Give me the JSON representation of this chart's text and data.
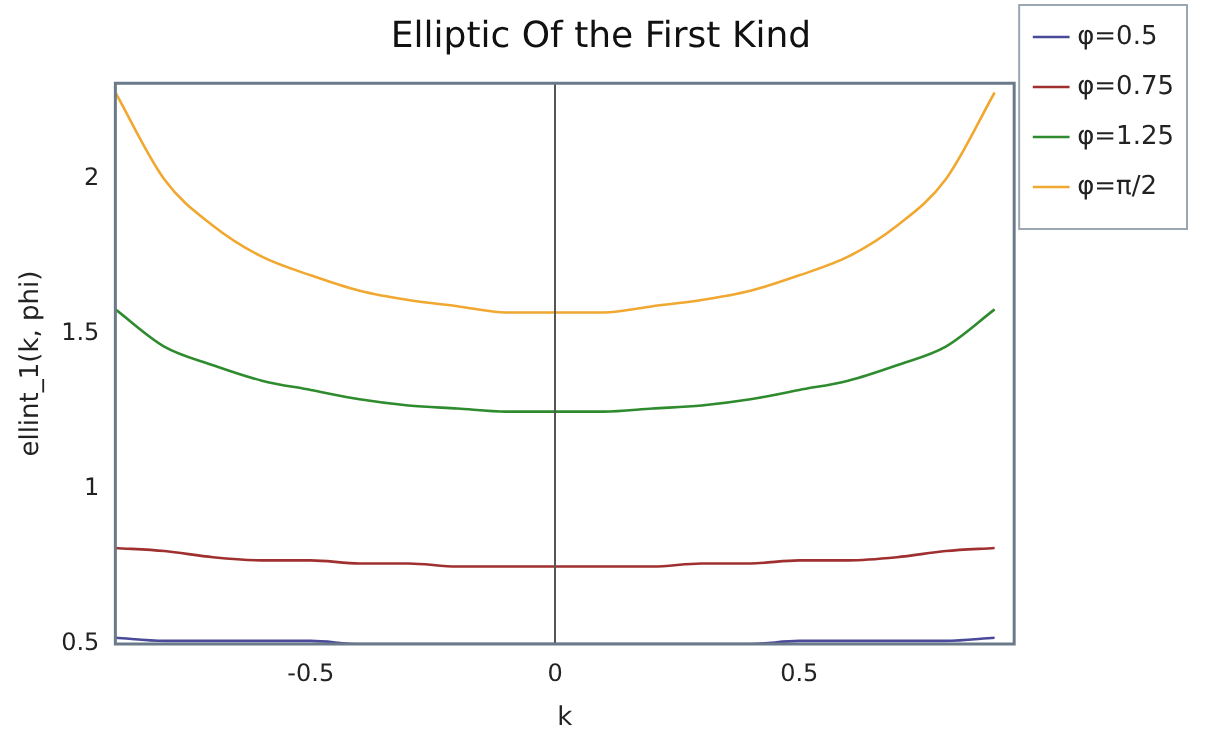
{
  "chart_data": {
    "type": "line",
    "title": "Elliptic Of the First Kind",
    "xlabel": "k",
    "ylabel": "ellint_1(k, phi)",
    "x": [
      -0.9,
      -0.8,
      -0.7,
      -0.6,
      -0.5,
      -0.4,
      -0.3,
      -0.2,
      -0.1,
      0,
      0.1,
      0.2,
      0.3,
      0.4,
      0.5,
      0.6,
      0.7,
      0.8,
      0.9
    ],
    "series": [
      {
        "name": "φ=0.5",
        "color": "#4a4a9a",
        "values": [
          0.52,
          0.51,
          0.51,
          0.51,
          0.51,
          0.5,
          0.5,
          0.5,
          0.5,
          0.5,
          0.5,
          0.5,
          0.5,
          0.5,
          0.51,
          0.51,
          0.51,
          0.51,
          0.52
        ]
      },
      {
        "name": "φ=0.75",
        "color": "#a03030",
        "values": [
          0.81,
          0.8,
          0.78,
          0.77,
          0.77,
          0.76,
          0.76,
          0.75,
          0.75,
          0.75,
          0.75,
          0.75,
          0.76,
          0.76,
          0.77,
          0.77,
          0.78,
          0.8,
          0.81
        ]
      },
      {
        "name": "φ=1.25",
        "color": "#2e8b2e",
        "values": [
          1.58,
          1.46,
          1.4,
          1.35,
          1.32,
          1.29,
          1.27,
          1.26,
          1.25,
          1.25,
          1.25,
          1.26,
          1.27,
          1.29,
          1.32,
          1.35,
          1.4,
          1.46,
          1.58
        ]
      },
      {
        "name": "φ=π/2",
        "color": "#f0a830",
        "values": [
          2.28,
          2,
          1.85,
          1.75,
          1.69,
          1.64,
          1.61,
          1.59,
          1.57,
          1.57,
          1.57,
          1.59,
          1.61,
          1.64,
          1.69,
          1.75,
          1.85,
          2,
          2.28
        ]
      }
    ],
    "xlim": [
      -0.9,
      0.94
    ],
    "ylim": [
      0.5,
      2.31
    ],
    "xticks": [
      -0.5,
      0,
      0.5
    ],
    "yticks": [
      0.5,
      1,
      1.5,
      2
    ],
    "ref_lines": [
      {
        "axis": "x",
        "value": 0,
        "color": "#555555"
      }
    ],
    "grid": false,
    "legend": "right",
    "marker": "none",
    "line_style": "solid"
  }
}
